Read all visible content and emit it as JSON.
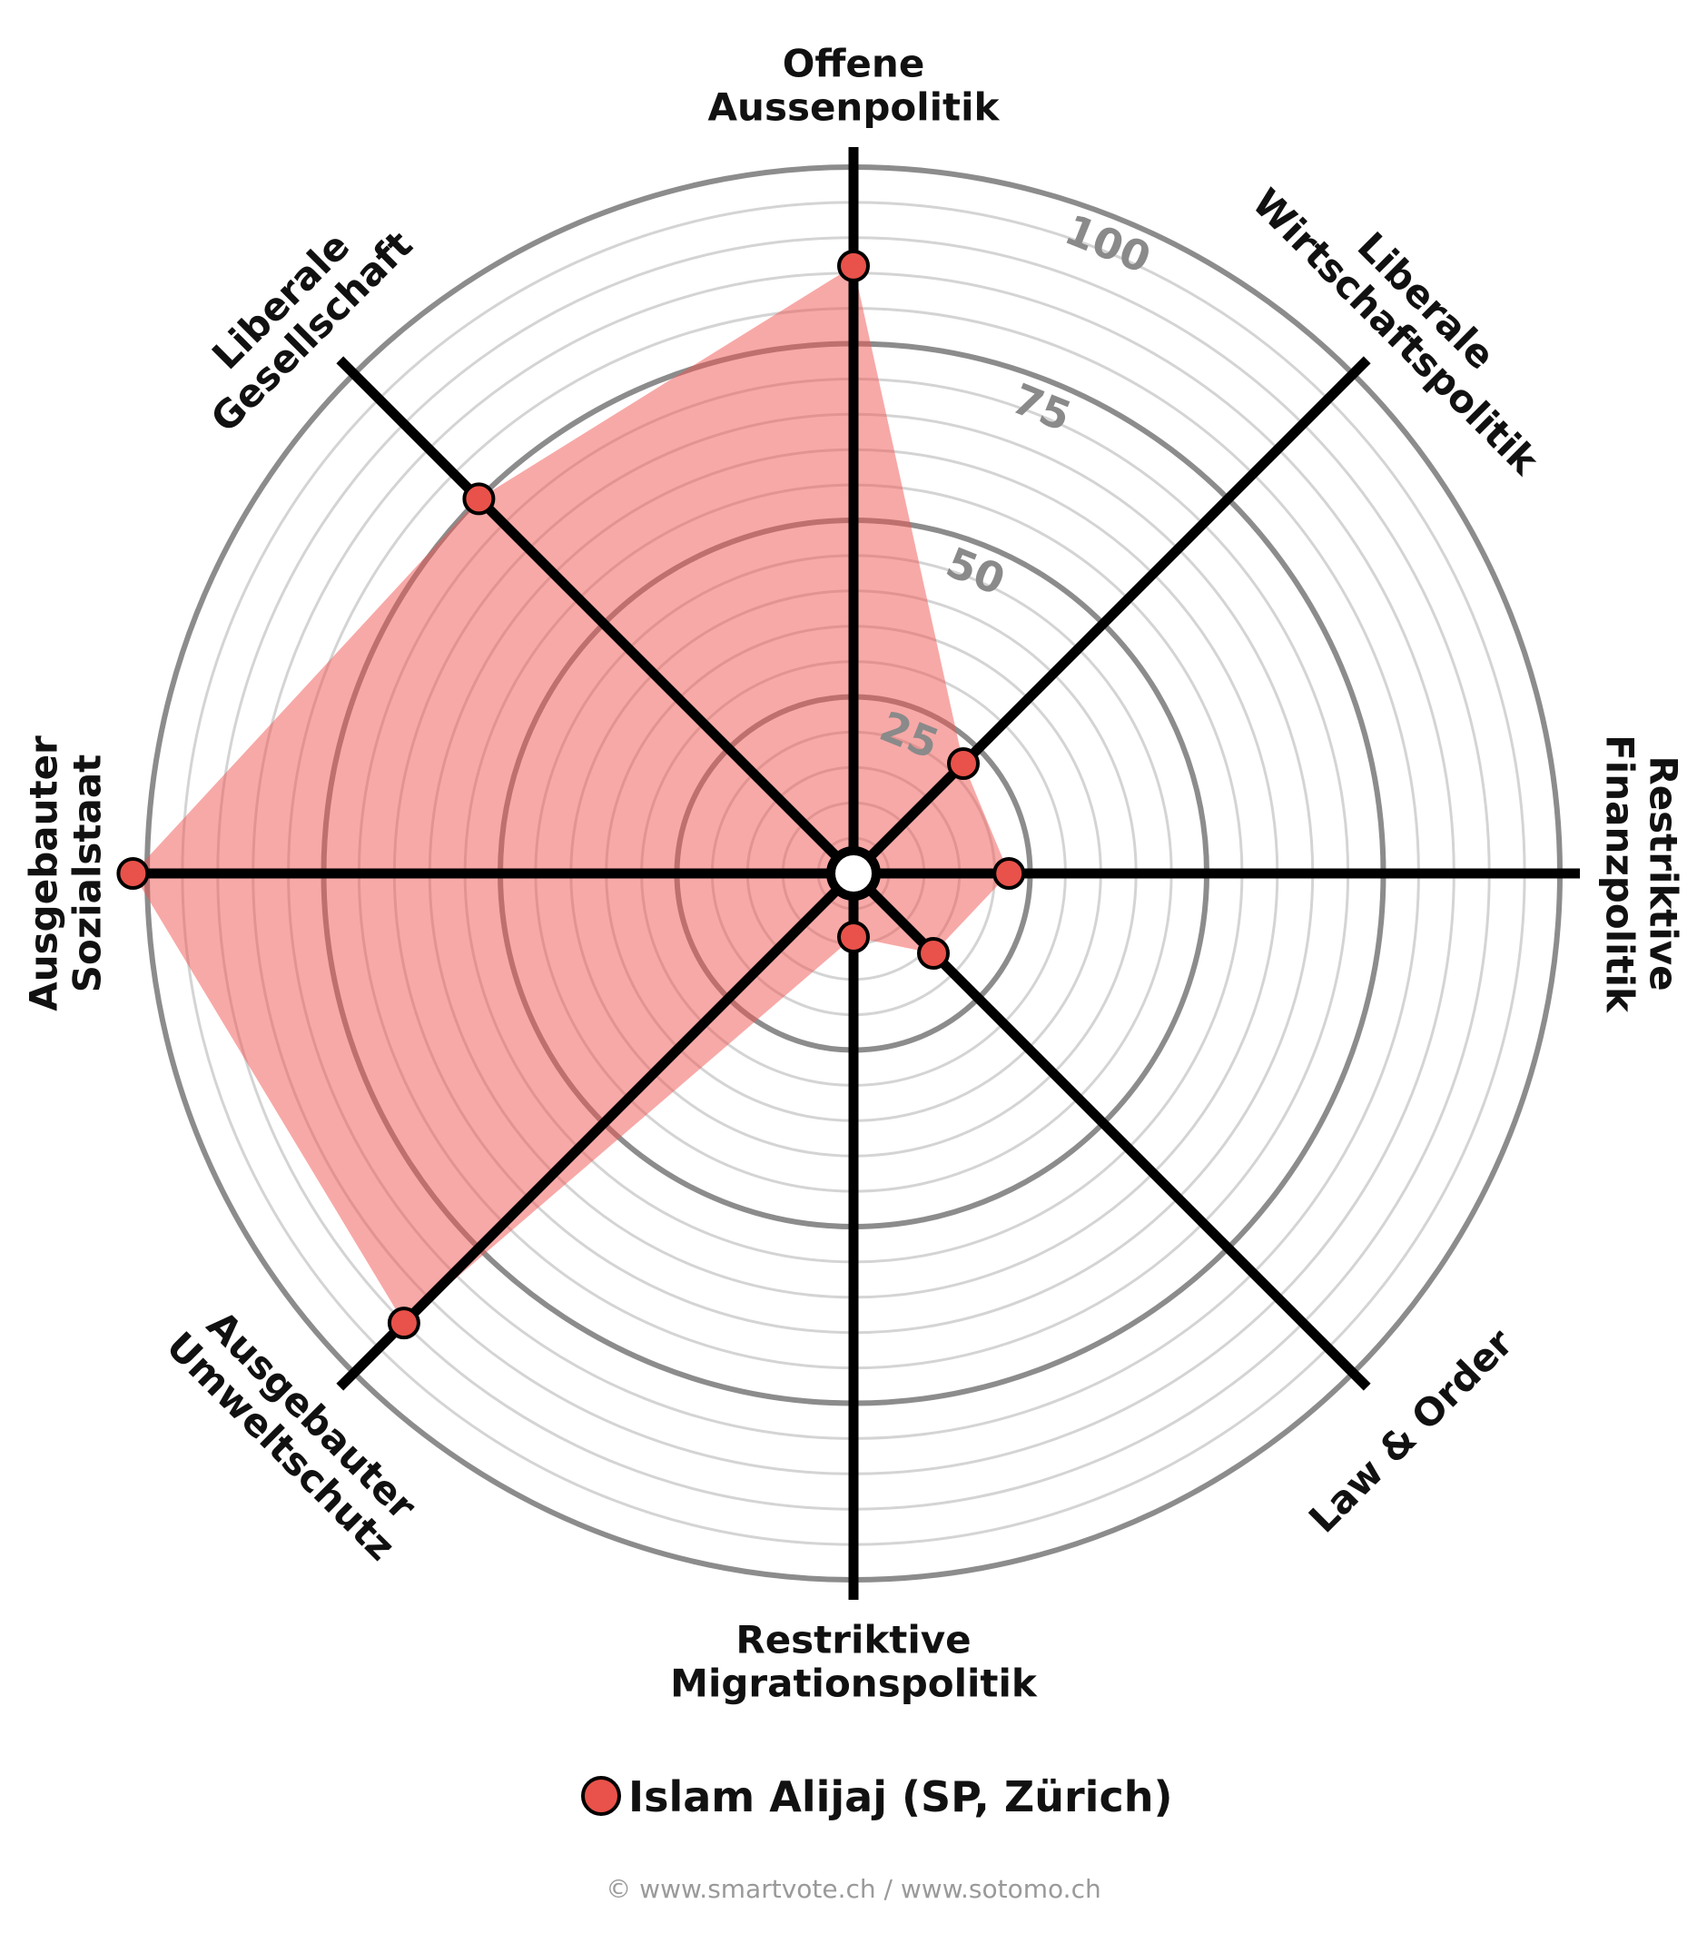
{
  "chart_data": {
    "type": "radar",
    "axes": [
      "Offene Aussenpolitik",
      "Liberale Wirtschaftspolitik",
      "Restriktive Finanzpolitik",
      "Law & Order",
      "Restriktive Migrationspolitik",
      "Ausgebauter Umweltschutz",
      "Ausgebauter Sozialstaat",
      "Liberale Gesellschaft"
    ],
    "axis_label_lines": [
      [
        "Offene",
        "Aussenpolitik"
      ],
      [
        "Liberale",
        "Wirtschaftspolitik"
      ],
      [
        "Restriktive",
        "Finanzpolitik"
      ],
      [
        "Law & Order"
      ],
      [
        "Restriktive",
        "Migrationspolitik"
      ],
      [
        "Ausgebauter",
        "Umweltschutz"
      ],
      [
        "Ausgebauter",
        "Sozialstaat"
      ],
      [
        "Liberale",
        "Gesellschaft"
      ]
    ],
    "series": [
      {
        "name": "Islam Alijaj (SP, Zürich)",
        "values": [
          86,
          22,
          22,
          16,
          9,
          90,
          102,
          75
        ]
      }
    ],
    "range": [
      0,
      100
    ],
    "ticks": [
      25,
      50,
      75,
      100
    ],
    "tick_labels": [
      "25",
      "50",
      "75",
      "100"
    ],
    "minor_step": 5,
    "legend_position": "bottom",
    "colors": {
      "fill": "#ef5350",
      "point": "#e8524a",
      "axis": "#000000",
      "major_ring": "#8c8c8c",
      "minor_ring": "#d4d4d4"
    }
  },
  "footer": {
    "copyright": "© www.smartvote.ch / www.sotomo.ch"
  }
}
